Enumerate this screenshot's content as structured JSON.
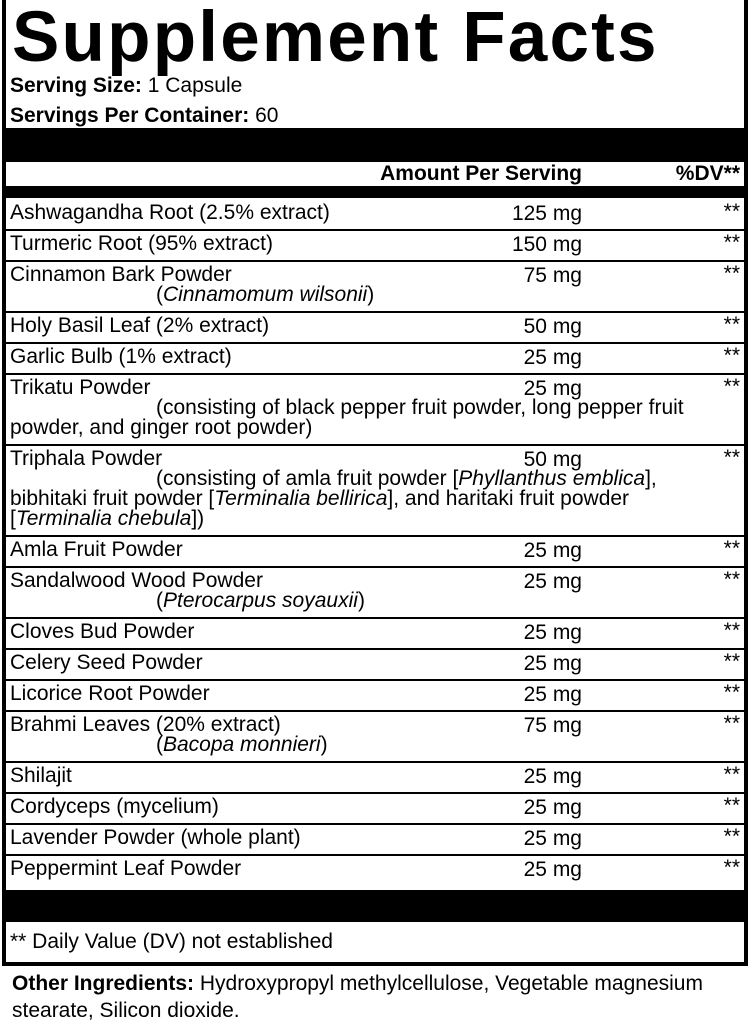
{
  "title": "Supplement Facts",
  "serving_size": {
    "label": "Serving Size:",
    "value": "1 Capsule"
  },
  "servings_per_container": {
    "label": "Servings Per Container:",
    "value": "60"
  },
  "header": {
    "amount": "Amount Per Serving",
    "dv": "%DV**"
  },
  "ingredients": [
    {
      "name": "Ashwagandha Root (2.5% extract)",
      "amount": "125 mg",
      "dv": "**"
    },
    {
      "name": "Turmeric Root (95% extract)",
      "amount": "150 mg",
      "dv": "**"
    },
    {
      "name": "Cinnamon Bark Powder",
      "amount": "75 mg",
      "dv": "**",
      "sub": [
        {
          "text": "("
        },
        {
          "text": "Cinnamomum wilsonii",
          "italic": true
        },
        {
          "text": ")"
        }
      ]
    },
    {
      "name": "Holy Basil Leaf (2% extract)",
      "amount": "50 mg",
      "dv": "**"
    },
    {
      "name": "Garlic Bulb (1% extract)",
      "amount": "25 mg",
      "dv": "**"
    },
    {
      "name": "Trikatu Powder",
      "amount": "25 mg",
      "dv": "**",
      "desc": [
        {
          "text": "(consisting of black pepper fruit powder, long pepper fruit powder, and ginger root powder)"
        }
      ]
    },
    {
      "name": "Triphala Powder",
      "amount": "50 mg",
      "dv": "**",
      "desc": [
        {
          "text": "(consisting of amla fruit powder ["
        },
        {
          "text": "Phyllanthus emblica",
          "italic": true
        },
        {
          "text": "], bibhitaki fruit powder ["
        },
        {
          "text": "Terminalia bellirica",
          "italic": true
        },
        {
          "text": "], and haritaki fruit powder ["
        },
        {
          "text": "Terminalia chebula",
          "italic": true
        },
        {
          "text": "])"
        }
      ]
    },
    {
      "name": "Amla Fruit Powder",
      "amount": "25 mg",
      "dv": "**"
    },
    {
      "name": "Sandalwood Wood Powder",
      "amount": "25 mg",
      "dv": "**",
      "sub": [
        {
          "text": "("
        },
        {
          "text": "Pterocarpus soyauxii",
          "italic": true
        },
        {
          "text": ")"
        }
      ]
    },
    {
      "name": "Cloves Bud Powder",
      "amount": "25 mg",
      "dv": "**"
    },
    {
      "name": "Celery Seed Powder",
      "amount": "25 mg",
      "dv": "**"
    },
    {
      "name": "Licorice Root Powder",
      "amount": "25 mg",
      "dv": "**"
    },
    {
      "name": "Brahmi Leaves (20% extract)",
      "amount": "75 mg",
      "dv": "**",
      "sub": [
        {
          "text": "("
        },
        {
          "text": "Bacopa monnieri",
          "italic": true
        },
        {
          "text": ")"
        }
      ]
    },
    {
      "name": "Shilajit",
      "amount": "25 mg",
      "dv": "**"
    },
    {
      "name": "Cordyceps (mycelium)",
      "amount": "25 mg",
      "dv": "**"
    },
    {
      "name": "Lavender Powder (whole plant)",
      "amount": "25 mg",
      "dv": "**"
    },
    {
      "name": "Peppermint Leaf Powder",
      "amount": "25 mg",
      "dv": "**"
    }
  ],
  "footnote": "** Daily Value (DV) not established",
  "other_ingredients": {
    "label": "Other Ingredients:",
    "value": "Hydroxypropyl methylcellulose, Vegetable magnesium stearate, Silicon dioxide."
  }
}
